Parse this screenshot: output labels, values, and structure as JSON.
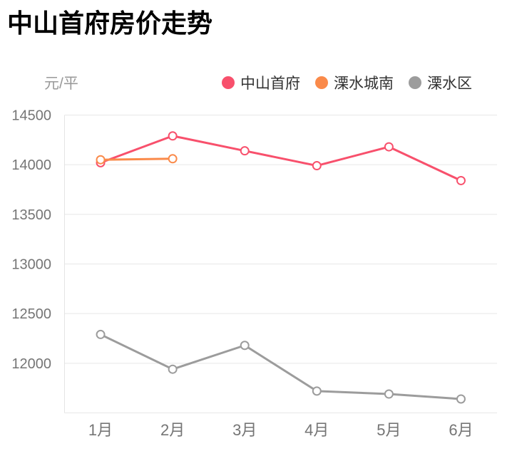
{
  "title": "中山首府房价走势",
  "unit_label": "元/平",
  "legend": [
    {
      "label": "中山首府",
      "color": "#f8506c"
    },
    {
      "label": "溧水城南",
      "color": "#fa8a4a"
    },
    {
      "label": "溧水区",
      "color": "#9c9c9c"
    }
  ],
  "chart_data": {
    "type": "line",
    "title": "中山首府房价走势",
    "ylabel": "元/平",
    "xlabel": "",
    "categories": [
      "1月",
      "2月",
      "3月",
      "4月",
      "5月",
      "6月"
    ],
    "series": [
      {
        "name": "中山首府",
        "color": "#f8506c",
        "values": [
          14020,
          14290,
          14140,
          13990,
          14180,
          13840
        ]
      },
      {
        "name": "溧水城南",
        "color": "#fa8a4a",
        "values": [
          14050,
          14060,
          null,
          null,
          null,
          null
        ]
      },
      {
        "name": "溧水区",
        "color": "#9c9c9c",
        "values": [
          12290,
          11940,
          12180,
          11720,
          11690,
          11640
        ]
      }
    ],
    "ylim": [
      11500,
      14500
    ],
    "ytick_step": 500,
    "ytick_labels": [
      "12000",
      "12500",
      "13000",
      "13500",
      "14000",
      "14500"
    ],
    "grid": true,
    "legend_position": "top"
  },
  "colors": {
    "grid_line": "#e8e8e8",
    "axis_line": "#e4e4e4",
    "axis_text": "#757575",
    "marker_fill": "#ffffff"
  }
}
